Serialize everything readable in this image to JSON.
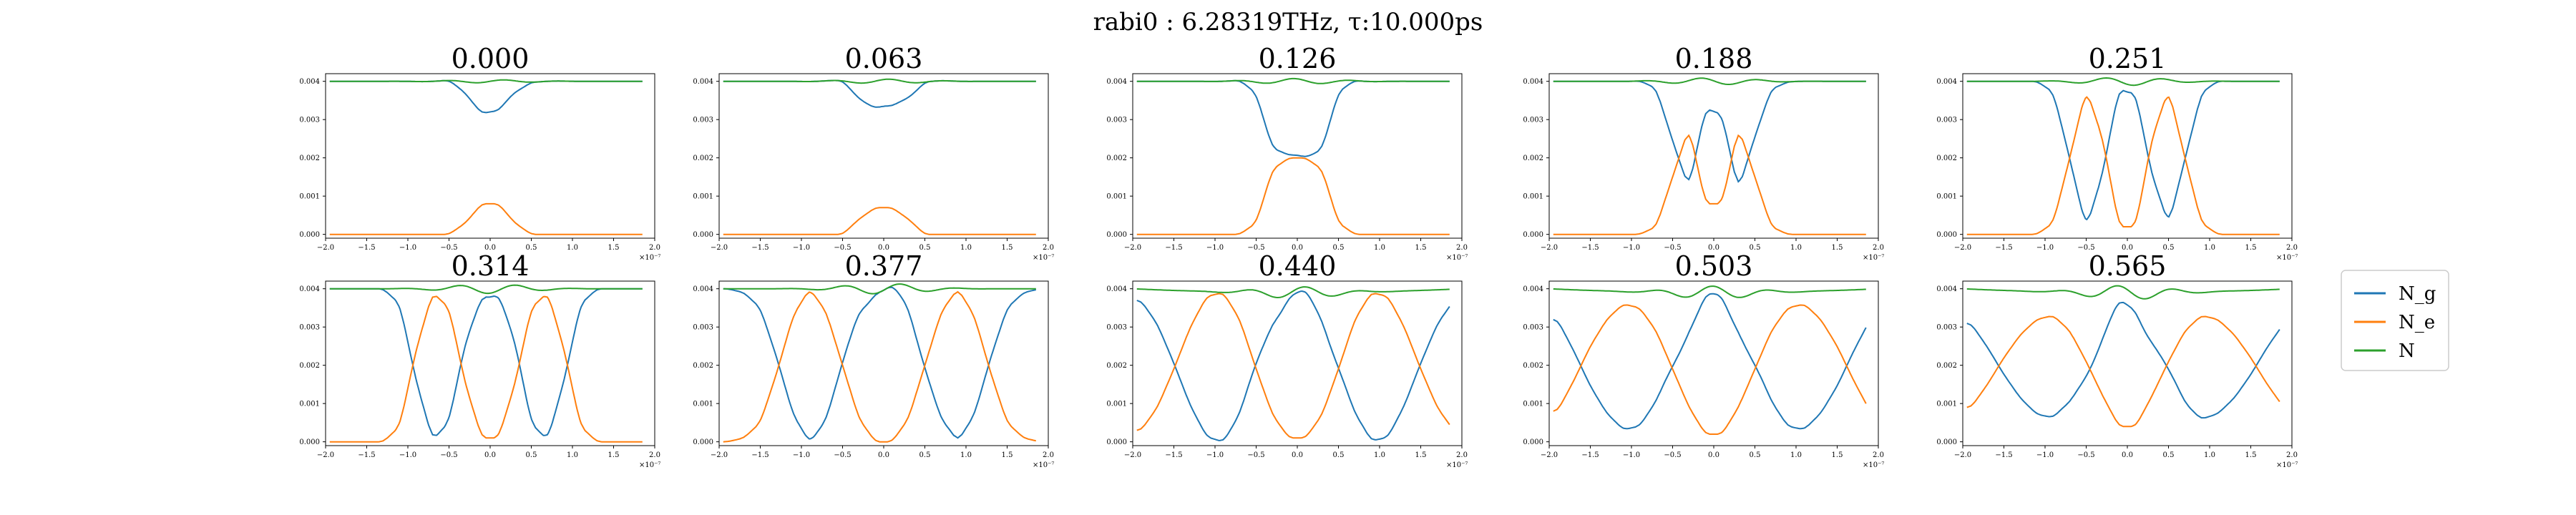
{
  "figure": {
    "suptitle": "rabi0 : 6.28319THz, τ:10.000ps"
  },
  "legend": {
    "entries": [
      "N_g",
      "N_e",
      "N"
    ],
    "placement": "right of bottom row"
  },
  "chart_data": {
    "type": "line",
    "layout": "2x5 grid of subplots",
    "xlim": [
      -2.0,
      2.0
    ],
    "x_ticks": [
      "−2.0",
      "−1.5",
      "−1.0",
      "−0.5",
      "0.0",
      "0.5",
      "1.0",
      "1.5",
      "2.0"
    ],
    "x_offset_label": "×10⁻⁷",
    "ylim": [
      -0.0001,
      0.0042
    ],
    "y_ticks": [
      "0.000",
      "0.001",
      "0.002",
      "0.003",
      "0.004"
    ],
    "grid": false,
    "series_colors": {
      "N_g": "#1f77b4",
      "N_e": "#ff7f0e",
      "N": "#2ca02c"
    },
    "series_names": [
      "N_g",
      "N_e",
      "N"
    ],
    "total_level": 0.004,
    "x_sample": [
      -1.9,
      -1.7,
      -1.5,
      -1.3,
      -1.1,
      -0.9,
      -0.7,
      -0.5,
      -0.3,
      -0.1,
      0.1,
      0.3,
      0.5,
      0.7,
      0.9,
      1.1,
      1.3,
      1.5,
      1.7,
      1.9
    ],
    "panels": [
      {
        "title": "0.000",
        "N_e_approx": [
          0,
          0,
          0,
          0,
          0,
          0,
          0,
          0,
          0.0003,
          0.0008,
          0.0008,
          0.0003,
          0,
          0,
          0,
          0,
          0,
          0,
          0,
          0
        ]
      },
      {
        "title": "0.063",
        "N_e_approx": [
          0,
          0,
          0,
          0,
          0,
          0,
          0,
          0,
          0.0004,
          0.0007,
          0.0007,
          0.0004,
          0,
          0,
          0,
          0,
          0,
          0,
          0,
          0
        ]
      },
      {
        "title": "0.126",
        "N_e_approx": [
          0,
          0,
          0,
          0,
          0,
          0,
          0,
          0.0003,
          0.0017,
          0.002,
          0.002,
          0.0017,
          0.0003,
          0,
          0,
          0,
          0,
          0,
          0,
          0
        ]
      },
      {
        "title": "0.188",
        "N_e_approx": [
          0,
          0,
          0,
          0,
          0,
          0,
          0.0002,
          0.0015,
          0.0028,
          0.0008,
          0.0008,
          0.0028,
          0.0015,
          0.0002,
          0,
          0,
          0,
          0,
          0,
          0
        ]
      },
      {
        "title": "0.251",
        "N_e_approx": [
          0,
          0,
          0,
          0,
          0,
          0.0003,
          0.002,
          0.0038,
          0.0025,
          0.0002,
          0.0002,
          0.0025,
          0.0038,
          0.002,
          0.0003,
          0,
          0,
          0,
          0,
          0
        ]
      },
      {
        "title": "0.314",
        "N_e_approx": [
          0,
          0,
          0,
          0,
          0.0004,
          0.0024,
          0.0039,
          0.0035,
          0.0015,
          0.0001,
          0.0001,
          0.0015,
          0.0035,
          0.0039,
          0.0024,
          0.0004,
          0,
          0,
          0,
          0
        ]
      },
      {
        "title": "0.377",
        "N_e_approx": [
          0,
          0.0001,
          0.0005,
          0.0018,
          0.0033,
          0.004,
          0.0034,
          0.002,
          0.0006,
          0,
          0,
          0.0006,
          0.002,
          0.0034,
          0.004,
          0.0033,
          0.0018,
          0.0005,
          0.0001,
          0
        ]
      },
      {
        "title": "0.440",
        "N_e_approx": [
          0.0003,
          0.0009,
          0.0019,
          0.003,
          0.0038,
          0.0039,
          0.0032,
          0.0019,
          0.0007,
          0.0001,
          0.0001,
          0.0007,
          0.0019,
          0.0032,
          0.0039,
          0.0038,
          0.003,
          0.0019,
          0.0009,
          0.0003
        ]
      },
      {
        "title": "0.503",
        "N_e_approx": [
          0.0008,
          0.0016,
          0.0025,
          0.0032,
          0.0036,
          0.0035,
          0.0029,
          0.0019,
          0.0009,
          0.0002,
          0.0002,
          0.0009,
          0.0019,
          0.0029,
          0.0035,
          0.0036,
          0.0032,
          0.0025,
          0.0016,
          0.0008
        ]
      },
      {
        "title": "0.565",
        "N_e_approx": [
          0.0009,
          0.0015,
          0.0022,
          0.0028,
          0.0032,
          0.0033,
          0.0029,
          0.0021,
          0.0012,
          0.0004,
          0.0004,
          0.0012,
          0.0021,
          0.0029,
          0.0033,
          0.0032,
          0.0028,
          0.0022,
          0.0015,
          0.0009
        ]
      }
    ]
  }
}
